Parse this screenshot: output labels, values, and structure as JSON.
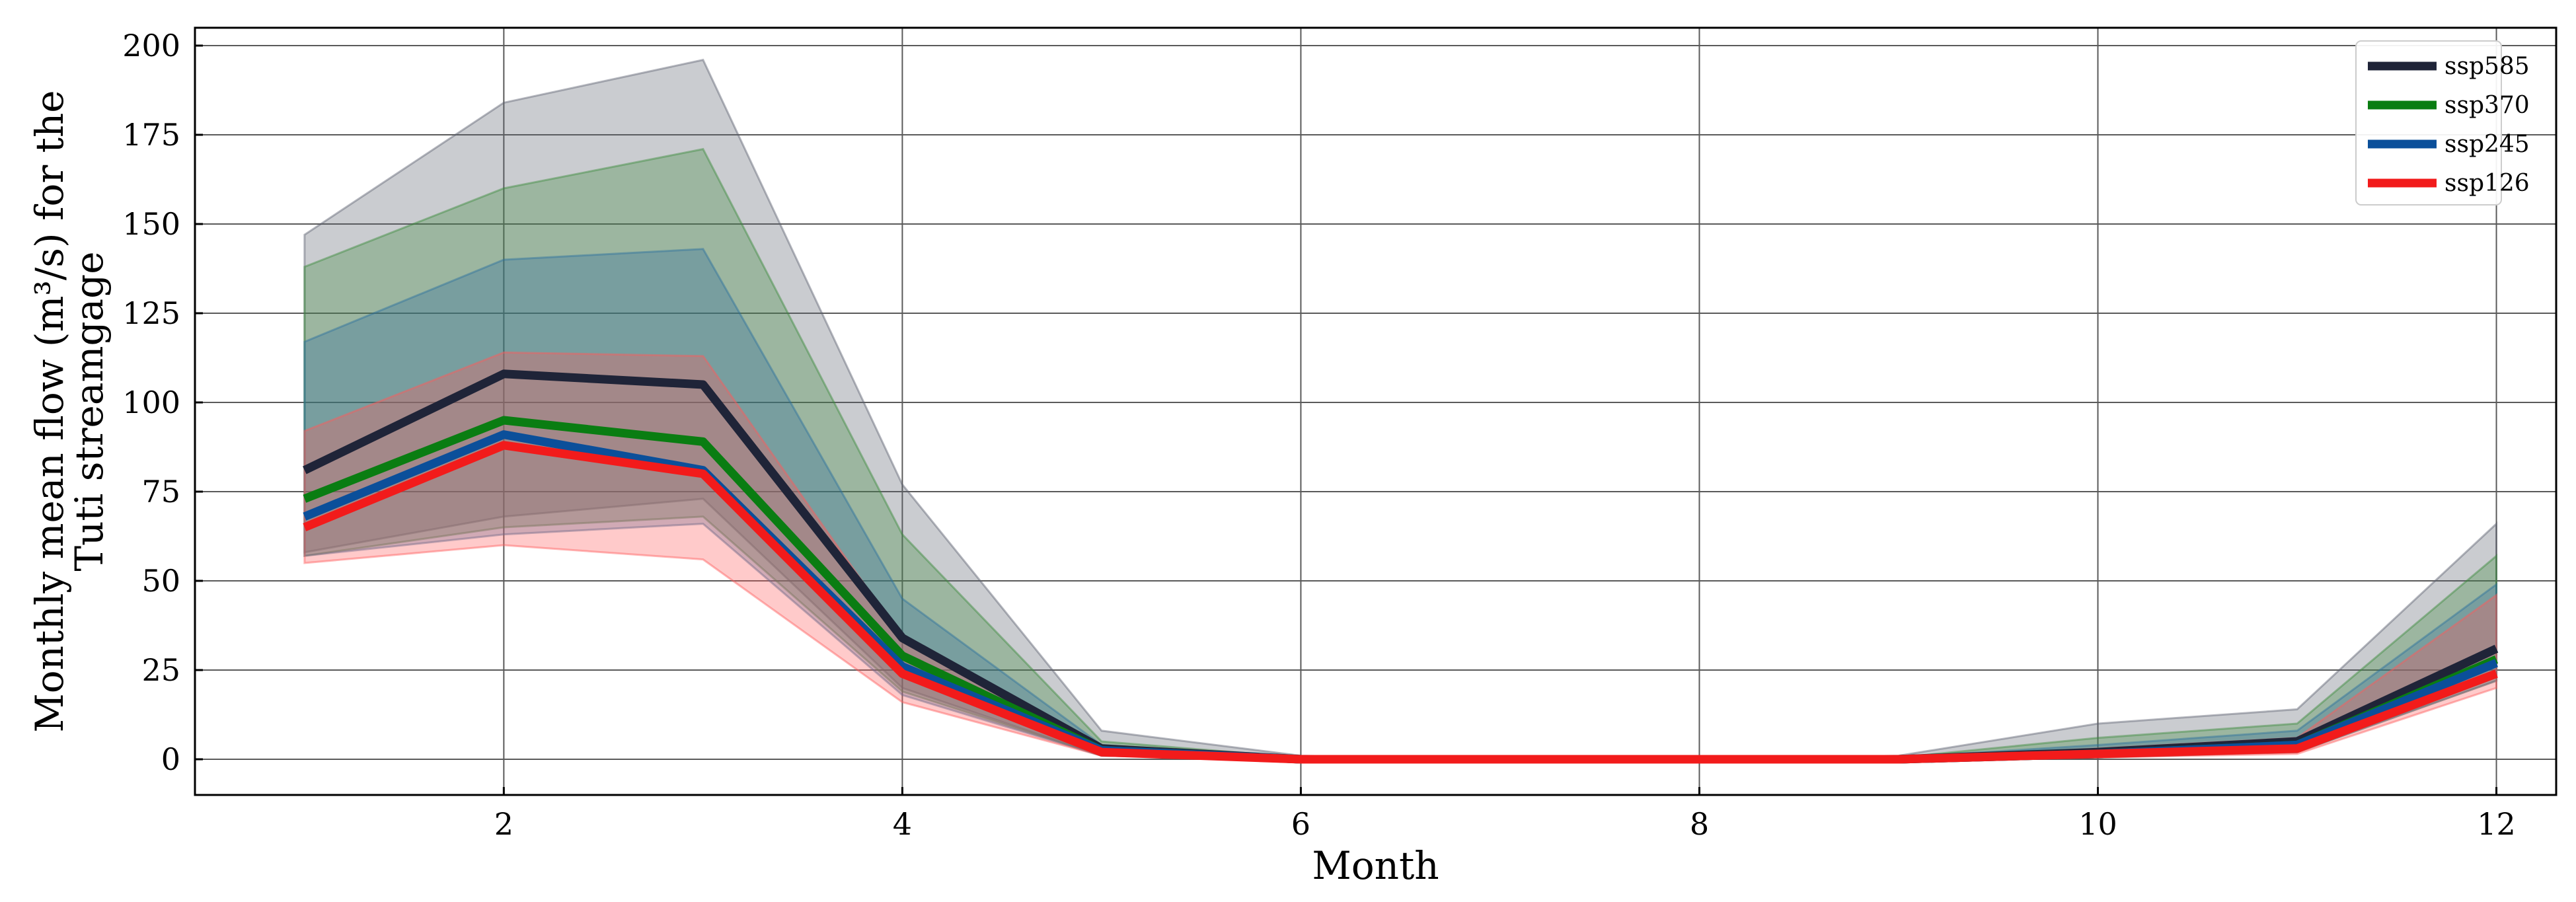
{
  "chart_data": {
    "type": "line",
    "title": "",
    "xlabel": "Month",
    "ylabel_lines": [
      "Monthly mean flow (m³/s) for the",
      "Tuti streamgage"
    ],
    "xlim": [
      0.45,
      12.3
    ],
    "ylim": [
      -10,
      205
    ],
    "x_ticks": [
      2,
      4,
      6,
      8,
      10,
      12
    ],
    "y_ticks": [
      0,
      25,
      50,
      75,
      100,
      125,
      150,
      175,
      200
    ],
    "grid": true,
    "legend_position": "top-right",
    "x": [
      1,
      2,
      3,
      4,
      5,
      6,
      7,
      8,
      9,
      10,
      11,
      12
    ],
    "series": [
      {
        "name": "ssp585",
        "color": "#1f2438",
        "values": [
          81,
          108,
          105,
          34,
          3,
          0,
          0,
          0,
          0,
          2,
          5,
          31
        ],
        "band_upper": [
          147,
          184,
          196,
          77,
          8,
          1,
          0,
          0,
          1,
          10,
          14,
          66
        ],
        "band_lower": [
          58,
          68,
          73,
          20,
          1,
          0,
          0,
          0,
          0,
          1,
          2,
          23
        ],
        "band_color": "#5a5f6e"
      },
      {
        "name": "ssp370",
        "color": "#0a7d12",
        "values": [
          73,
          95,
          89,
          29,
          2.5,
          0,
          0,
          0,
          0,
          1.5,
          4,
          28
        ],
        "band_upper": [
          138,
          160,
          171,
          63,
          5,
          0.5,
          0,
          0,
          0.5,
          6,
          10,
          57
        ],
        "band_lower": [
          57,
          65,
          68,
          19,
          1,
          0,
          0,
          0,
          0,
          0.5,
          2,
          22
        ],
        "band_color": "#3a8a3a"
      },
      {
        "name": "ssp245",
        "color": "#0b4f9a",
        "values": [
          68,
          91,
          81,
          26,
          2.5,
          0,
          0,
          0,
          0,
          1.5,
          4,
          27
        ],
        "band_upper": [
          117,
          140,
          143,
          45,
          4,
          0.5,
          0,
          0,
          0.5,
          4,
          8,
          49
        ],
        "band_lower": [
          57,
          63,
          66,
          18,
          1,
          0,
          0,
          0,
          0,
          0.5,
          2,
          22
        ],
        "band_color": "#2a6e9e"
      },
      {
        "name": "ssp126",
        "color": "#f21b1b",
        "values": [
          65,
          88,
          80,
          24,
          2,
          0,
          0,
          0,
          0,
          1.5,
          3,
          24
        ],
        "band_upper": [
          92,
          114,
          113,
          34,
          3,
          0.3,
          0,
          0,
          0.3,
          3,
          6,
          46
        ],
        "band_lower": [
          55,
          60,
          56,
          16,
          1,
          0,
          0,
          0,
          0,
          0.5,
          1.5,
          20
        ],
        "band_color": "#ff5a5a"
      }
    ]
  }
}
